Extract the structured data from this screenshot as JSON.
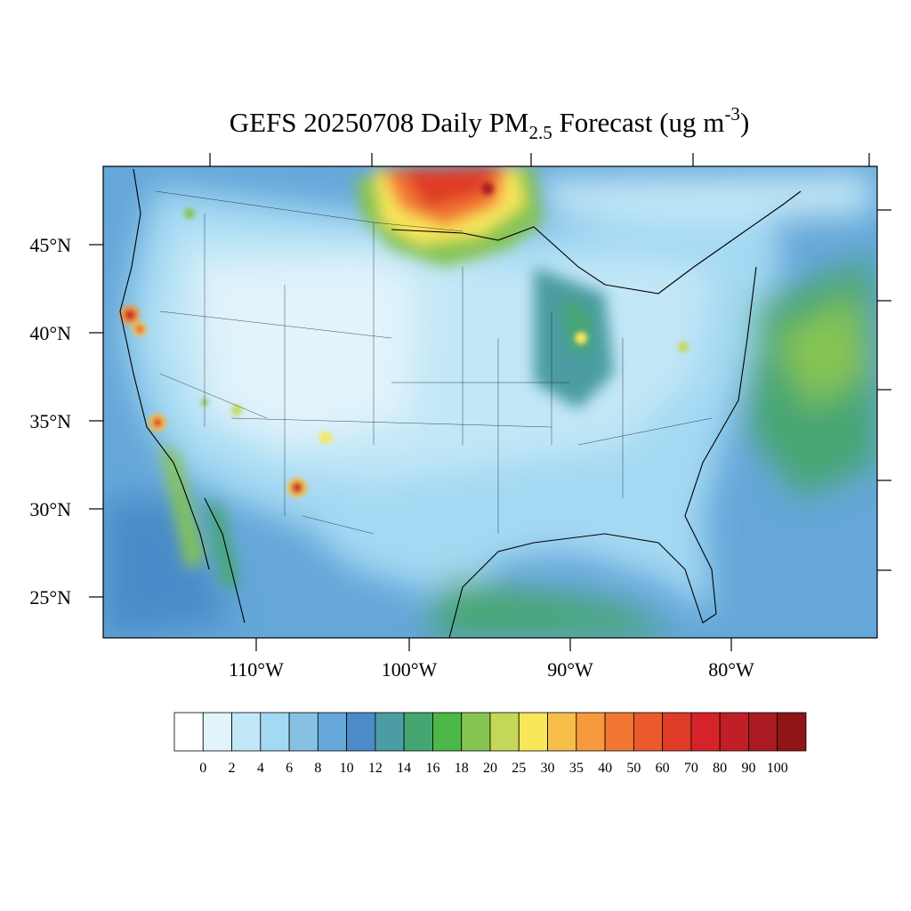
{
  "title": {
    "prefix": "GEFS 20250708 Daily PM",
    "subscript": "2.5",
    "middle": " Forecast (ug m",
    "superscript": "-3",
    "suffix": ")"
  },
  "chart_data": {
    "type": "heatmap",
    "projection": "lambert-conformal",
    "region": "Contiguous United States",
    "variable": "Daily PM2.5",
    "units": "ug m-3",
    "lat_ticks": [
      "45°N",
      "40°N",
      "35°N",
      "30°N",
      "25°N"
    ],
    "lon_ticks": [
      "110°W",
      "100°W",
      "90°W",
      "80°W"
    ],
    "colorbar": {
      "levels": [
        "0",
        "2",
        "4",
        "6",
        "8",
        "10",
        "12",
        "14",
        "16",
        "18",
        "20",
        "25",
        "30",
        "35",
        "40",
        "50",
        "60",
        "70",
        "80",
        "90",
        "100"
      ],
      "colors": [
        "#ffffff",
        "#e1f3fb",
        "#c2e7f7",
        "#a4d9f3",
        "#86c1e4",
        "#65a7d9",
        "#4a8bc8",
        "#4b9da3",
        "#46a672",
        "#4cb848",
        "#86c452",
        "#c5d758",
        "#f8e65b",
        "#f8be4a",
        "#f69a3d",
        "#f37734",
        "#eb5a2d",
        "#df3c28",
        "#d62329",
        "#c11f26",
        "#a91b21",
        "#8f1517"
      ]
    },
    "hotspots": [
      {
        "region": "Northern Minnesota / Manitoba",
        "level": "90-100"
      },
      {
        "region": "Northern California",
        "level": "60-70"
      },
      {
        "region": "Southern California",
        "level": "50-60"
      },
      {
        "region": "Southwestern New Mexico",
        "level": "70-80"
      },
      {
        "region": "Lake Michigan / Chicago",
        "level": "30-35"
      },
      {
        "region": "Western Atlantic offshore",
        "level": "20-25"
      },
      {
        "region": "Western Gulf of Mexico",
        "level": "16-18"
      }
    ]
  }
}
